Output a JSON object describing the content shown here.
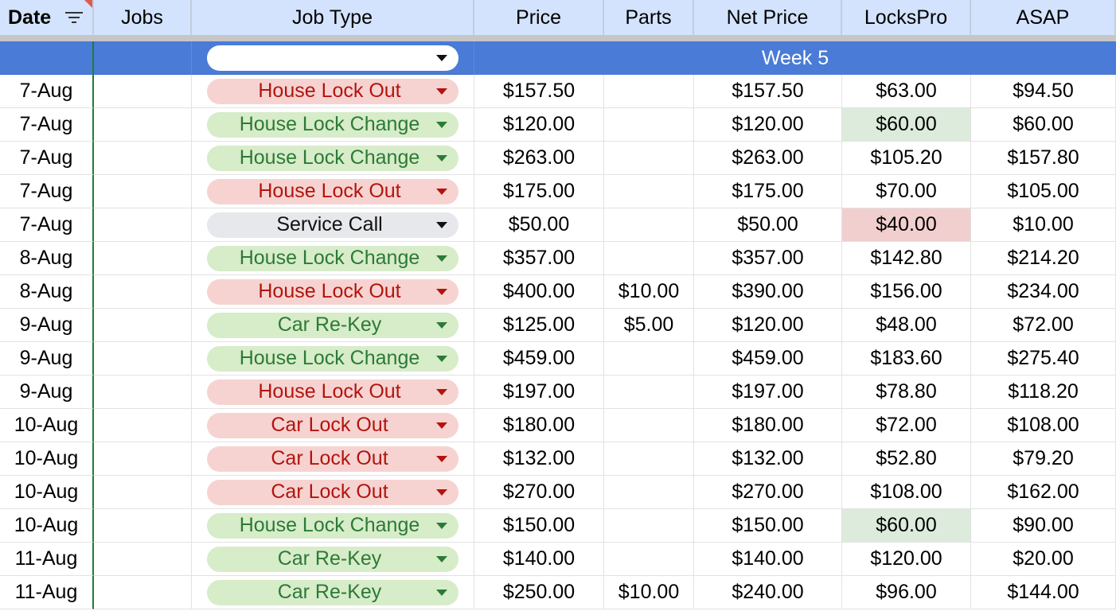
{
  "colors": {
    "header_bg": "#d3e3fd",
    "week_bg": "#4a7bd6",
    "chip_red_bg": "#f6d3d1",
    "chip_red_text": "#b3140e",
    "chip_green_bg": "#d7ecc9",
    "chip_green_text": "#2c7a36",
    "chip_gray_bg": "#e7e8ec",
    "highlight_green": "#dcebdb",
    "highlight_red": "#f2cfcf"
  },
  "header": {
    "date": "Date",
    "jobs": "Jobs",
    "job_type": "Job Type",
    "price": "Price",
    "parts": "Parts",
    "net_price": "Net Price",
    "lockspro": "LocksPro",
    "asap": "ASAP",
    "filter_icon": "filter-icon"
  },
  "week": {
    "label": "Week 5",
    "dropdown_value": ""
  },
  "rows": [
    {
      "date": "7-Aug",
      "jobs": "",
      "job_type": "House Lock Out",
      "color": "red",
      "price": "$157.50",
      "parts": "",
      "net": "$157.50",
      "lockspro": "$63.00",
      "asap": "$94.50",
      "lockspro_hl": ""
    },
    {
      "date": "7-Aug",
      "jobs": "",
      "job_type": "House Lock Change",
      "color": "green",
      "price": "$120.00",
      "parts": "",
      "net": "$120.00",
      "lockspro": "$60.00",
      "asap": "$60.00",
      "lockspro_hl": "green"
    },
    {
      "date": "7-Aug",
      "jobs": "",
      "job_type": "House Lock Change",
      "color": "green",
      "price": "$263.00",
      "parts": "",
      "net": "$263.00",
      "lockspro": "$105.20",
      "asap": "$157.80",
      "lockspro_hl": ""
    },
    {
      "date": "7-Aug",
      "jobs": "",
      "job_type": "House Lock Out",
      "color": "red",
      "price": "$175.00",
      "parts": "",
      "net": "$175.00",
      "lockspro": "$70.00",
      "asap": "$105.00",
      "lockspro_hl": ""
    },
    {
      "date": "7-Aug",
      "jobs": "",
      "job_type": "Service Call",
      "color": "gray",
      "price": "$50.00",
      "parts": "",
      "net": "$50.00",
      "lockspro": "$40.00",
      "asap": "$10.00",
      "lockspro_hl": "red"
    },
    {
      "date": "8-Aug",
      "jobs": "",
      "job_type": "House Lock Change",
      "color": "green",
      "price": "$357.00",
      "parts": "",
      "net": "$357.00",
      "lockspro": "$142.80",
      "asap": "$214.20",
      "lockspro_hl": ""
    },
    {
      "date": "8-Aug",
      "jobs": "",
      "job_type": "House Lock Out",
      "color": "red",
      "price": "$400.00",
      "parts": "$10.00",
      "net": "$390.00",
      "lockspro": "$156.00",
      "asap": "$234.00",
      "lockspro_hl": ""
    },
    {
      "date": "9-Aug",
      "jobs": "",
      "job_type": "Car Re-Key",
      "color": "green",
      "price": "$125.00",
      "parts": "$5.00",
      "net": "$120.00",
      "lockspro": "$48.00",
      "asap": "$72.00",
      "lockspro_hl": ""
    },
    {
      "date": "9-Aug",
      "jobs": "",
      "job_type": "House Lock Change",
      "color": "green",
      "price": "$459.00",
      "parts": "",
      "net": "$459.00",
      "lockspro": "$183.60",
      "asap": "$275.40",
      "lockspro_hl": ""
    },
    {
      "date": "9-Aug",
      "jobs": "",
      "job_type": "House Lock Out",
      "color": "red",
      "price": "$197.00",
      "parts": "",
      "net": "$197.00",
      "lockspro": "$78.80",
      "asap": "$118.20",
      "lockspro_hl": ""
    },
    {
      "date": "10-Aug",
      "jobs": "",
      "job_type": "Car Lock Out",
      "color": "red",
      "price": "$180.00",
      "parts": "",
      "net": "$180.00",
      "lockspro": "$72.00",
      "asap": "$108.00",
      "lockspro_hl": ""
    },
    {
      "date": "10-Aug",
      "jobs": "",
      "job_type": "Car Lock Out",
      "color": "red",
      "price": "$132.00",
      "parts": "",
      "net": "$132.00",
      "lockspro": "$52.80",
      "asap": "$79.20",
      "lockspro_hl": ""
    },
    {
      "date": "10-Aug",
      "jobs": "",
      "job_type": "Car Lock Out",
      "color": "red",
      "price": "$270.00",
      "parts": "",
      "net": "$270.00",
      "lockspro": "$108.00",
      "asap": "$162.00",
      "lockspro_hl": ""
    },
    {
      "date": "10-Aug",
      "jobs": "",
      "job_type": "House Lock Change",
      "color": "green",
      "price": "$150.00",
      "parts": "",
      "net": "$150.00",
      "lockspro": "$60.00",
      "asap": "$90.00",
      "lockspro_hl": "green"
    },
    {
      "date": "11-Aug",
      "jobs": "",
      "job_type": "Car Re-Key",
      "color": "green",
      "price": "$140.00",
      "parts": "",
      "net": "$140.00",
      "lockspro": "$120.00",
      "asap": "$20.00",
      "lockspro_hl": ""
    },
    {
      "date": "11-Aug",
      "jobs": "",
      "job_type": "Car Re-Key",
      "color": "green",
      "price": "$250.00",
      "parts": "$10.00",
      "net": "$240.00",
      "lockspro": "$96.00",
      "asap": "$144.00",
      "lockspro_hl": ""
    }
  ]
}
